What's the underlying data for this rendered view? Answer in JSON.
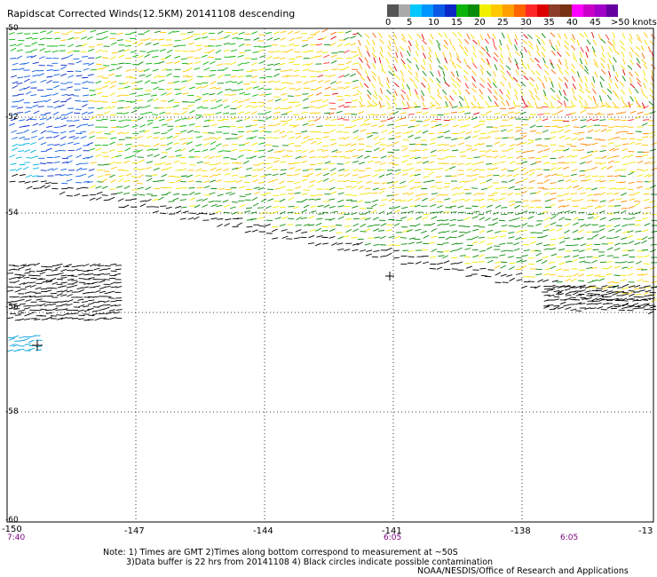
{
  "title": "Rapidscat Corrected Winds(12.5KM) 20141108 descending",
  "colorbar": {
    "colors": [
      "#555555",
      "#aaaaaa",
      "#00c8ff",
      "#0096ff",
      "#0a5ae6",
      "#0a28c8",
      "#0ab40a",
      "#0a8c0a",
      "#f0f000",
      "#ffc800",
      "#ffa000",
      "#ff6400",
      "#ff2828",
      "#dc0000",
      "#8c3c28",
      "#783214",
      "#ff00ff",
      "#c800c8",
      "#a000c8",
      "#6400a0"
    ],
    "labels": [
      "0",
      "5",
      "10",
      "15",
      "20",
      "25",
      "30",
      "35",
      "40",
      "45",
      ">50 knots"
    ]
  },
  "axes": {
    "y_labels": [
      "-50",
      "-52",
      "-54",
      "-56",
      "-58",
      "-60"
    ],
    "x_labels": [
      "-150",
      "-147",
      "-144",
      "-141",
      "-138",
      "-13"
    ]
  },
  "times": [
    "7:40",
    "6:05",
    "6:05"
  ],
  "notes": [
    "Note: 1) Times are GMT 2)Times along bottom correspond to measurement at ~50S",
    "3)Data buffer is 22 hrs from 20141108 4) Black circles indicate possible contamination"
  ],
  "credit": "NOAA/NESDIS/Office of Research and Applications"
}
